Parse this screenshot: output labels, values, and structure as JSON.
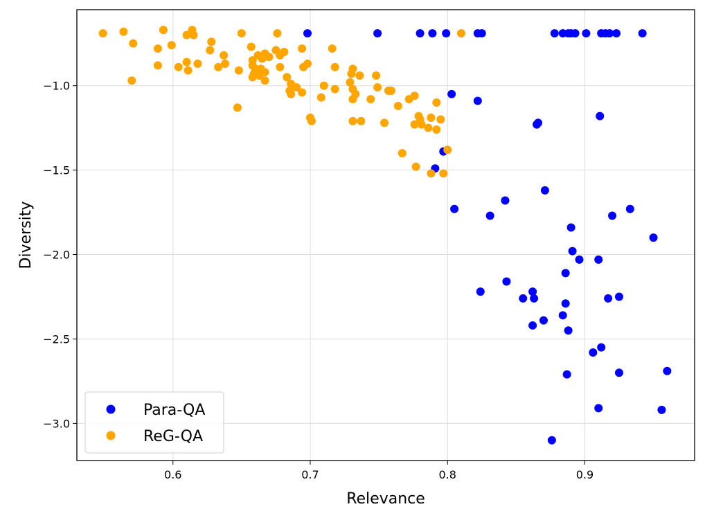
{
  "chart_data": {
    "type": "scatter",
    "xlabel": "Relevance",
    "ylabel": "Diversity",
    "xlim": [
      0.53,
      0.98
    ],
    "ylim": [
      -3.22,
      -0.55
    ],
    "xticks": [
      0.6,
      0.7,
      0.8,
      0.9
    ],
    "xtick_labels": [
      "0.6",
      "0.7",
      "0.8",
      "0.9"
    ],
    "yticks": [
      -1.0,
      -1.5,
      -2.0,
      -2.5,
      -3.0
    ],
    "ytick_labels": [
      "−1.0",
      "−1.5",
      "−2.0",
      "−2.5",
      "−3.0"
    ],
    "grid": true,
    "legend_position": "lower-left",
    "series": [
      {
        "name": "Para-QA",
        "color": "#0000ff",
        "points": [
          [
            0.698,
            -0.69
          ],
          [
            0.749,
            -0.69
          ],
          [
            0.78,
            -0.69
          ],
          [
            0.789,
            -0.69
          ],
          [
            0.799,
            -0.69
          ],
          [
            0.822,
            -0.69
          ],
          [
            0.825,
            -0.69
          ],
          [
            0.878,
            -0.69
          ],
          [
            0.884,
            -0.69
          ],
          [
            0.888,
            -0.69
          ],
          [
            0.89,
            -0.69
          ],
          [
            0.893,
            -0.69
          ],
          [
            0.901,
            -0.69
          ],
          [
            0.912,
            -0.69
          ],
          [
            0.915,
            -0.69
          ],
          [
            0.918,
            -0.69
          ],
          [
            0.923,
            -0.69
          ],
          [
            0.942,
            -0.69
          ],
          [
            0.803,
            -1.05
          ],
          [
            0.822,
            -1.09
          ],
          [
            0.866,
            -1.22
          ],
          [
            0.865,
            -1.23
          ],
          [
            0.911,
            -1.18
          ],
          [
            0.797,
            -1.39
          ],
          [
            0.791,
            -1.49
          ],
          [
            0.871,
            -1.62
          ],
          [
            0.805,
            -1.73
          ],
          [
            0.842,
            -1.68
          ],
          [
            0.831,
            -1.77
          ],
          [
            0.933,
            -1.73
          ],
          [
            0.92,
            -1.77
          ],
          [
            0.89,
            -1.84
          ],
          [
            0.95,
            -1.9
          ],
          [
            0.891,
            -1.98
          ],
          [
            0.896,
            -2.03
          ],
          [
            0.91,
            -2.03
          ],
          [
            0.886,
            -2.11
          ],
          [
            0.843,
            -2.16
          ],
          [
            0.824,
            -2.22
          ],
          [
            0.855,
            -2.26
          ],
          [
            0.862,
            -2.22
          ],
          [
            0.863,
            -2.26
          ],
          [
            0.886,
            -2.29
          ],
          [
            0.917,
            -2.26
          ],
          [
            0.925,
            -2.25
          ],
          [
            0.884,
            -2.36
          ],
          [
            0.87,
            -2.39
          ],
          [
            0.862,
            -2.42
          ],
          [
            0.888,
            -2.45
          ],
          [
            0.912,
            -2.55
          ],
          [
            0.906,
            -2.58
          ],
          [
            0.887,
            -2.71
          ],
          [
            0.925,
            -2.7
          ],
          [
            0.96,
            -2.69
          ],
          [
            0.91,
            -2.91
          ],
          [
            0.956,
            -2.92
          ],
          [
            0.876,
            -3.1
          ]
        ]
      },
      {
        "name": "ReG-QA",
        "color": "#ffa500",
        "points": [
          [
            0.549,
            -0.69
          ],
          [
            0.564,
            -0.68
          ],
          [
            0.593,
            -0.67
          ],
          [
            0.614,
            -0.67
          ],
          [
            0.61,
            -0.7
          ],
          [
            0.615,
            -0.7
          ],
          [
            0.65,
            -0.69
          ],
          [
            0.676,
            -0.69
          ],
          [
            0.81,
            -0.69
          ],
          [
            0.571,
            -0.75
          ],
          [
            0.589,
            -0.78
          ],
          [
            0.599,
            -0.76
          ],
          [
            0.628,
            -0.74
          ],
          [
            0.627,
            -0.79
          ],
          [
            0.657,
            -0.77
          ],
          [
            0.675,
            -0.79
          ],
          [
            0.694,
            -0.78
          ],
          [
            0.716,
            -0.78
          ],
          [
            0.61,
            -0.86
          ],
          [
            0.589,
            -0.88
          ],
          [
            0.604,
            -0.89
          ],
          [
            0.611,
            -0.91
          ],
          [
            0.618,
            -0.87
          ],
          [
            0.633,
            -0.89
          ],
          [
            0.638,
            -0.87
          ],
          [
            0.637,
            -0.82
          ],
          [
            0.648,
            -0.91
          ],
          [
            0.658,
            -0.88
          ],
          [
            0.658,
            -0.85
          ],
          [
            0.662,
            -0.82
          ],
          [
            0.667,
            -0.81
          ],
          [
            0.665,
            -0.84
          ],
          [
            0.67,
            -0.83
          ],
          [
            0.66,
            -0.9
          ],
          [
            0.664,
            -0.9
          ],
          [
            0.659,
            -0.93
          ],
          [
            0.658,
            -0.95
          ],
          [
            0.663,
            -0.94
          ],
          [
            0.667,
            -0.92
          ],
          [
            0.667,
            -0.97
          ],
          [
            0.678,
            -0.82
          ],
          [
            0.681,
            -0.8
          ],
          [
            0.678,
            -0.89
          ],
          [
            0.683,
            -0.95
          ],
          [
            0.695,
            -0.89
          ],
          [
            0.698,
            -0.87
          ],
          [
            0.718,
            -0.89
          ],
          [
            0.686,
            -0.99
          ],
          [
            0.69,
            -1.01
          ],
          [
            0.685,
            -1.03
          ],
          [
            0.686,
            -1.05
          ],
          [
            0.694,
            -1.04
          ],
          [
            0.71,
            -1.0
          ],
          [
            0.718,
            -1.02
          ],
          [
            0.73,
            -0.93
          ],
          [
            0.731,
            -0.9
          ],
          [
            0.736,
            -0.94
          ],
          [
            0.729,
            -0.98
          ],
          [
            0.731,
            -1.02
          ],
          [
            0.733,
            -1.05
          ],
          [
            0.731,
            -1.08
          ],
          [
            0.748,
            -0.94
          ],
          [
            0.749,
            -1.01
          ],
          [
            0.757,
            -1.03
          ],
          [
            0.759,
            -1.03
          ],
          [
            0.744,
            -1.08
          ],
          [
            0.708,
            -1.07
          ],
          [
            0.57,
            -0.97
          ],
          [
            0.647,
            -1.13
          ],
          [
            0.7,
            -1.19
          ],
          [
            0.701,
            -1.21
          ],
          [
            0.731,
            -1.21
          ],
          [
            0.737,
            -1.21
          ],
          [
            0.754,
            -1.22
          ],
          [
            0.764,
            -1.12
          ],
          [
            0.772,
            -1.08
          ],
          [
            0.776,
            -1.06
          ],
          [
            0.776,
            -1.23
          ],
          [
            0.78,
            -1.2
          ],
          [
            0.781,
            -1.23
          ],
          [
            0.779,
            -1.18
          ],
          [
            0.786,
            -1.25
          ],
          [
            0.788,
            -1.19
          ],
          [
            0.792,
            -1.1
          ],
          [
            0.792,
            -1.26
          ],
          [
            0.795,
            -1.2
          ],
          [
            0.767,
            -1.4
          ],
          [
            0.777,
            -1.48
          ],
          [
            0.788,
            -1.52
          ],
          [
            0.797,
            -1.52
          ],
          [
            0.8,
            -1.38
          ]
        ]
      }
    ]
  }
}
